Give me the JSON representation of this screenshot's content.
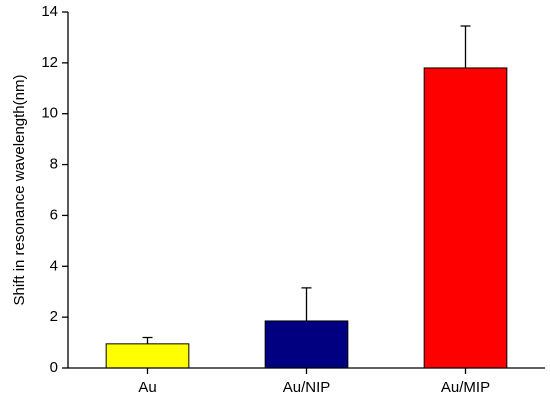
{
  "chart_data": {
    "type": "bar",
    "y_label": "Shift in resonance wavelength(nm)",
    "categories": [
      "Au",
      "Au/NIP",
      "Au/MIP"
    ],
    "values": [
      0.95,
      1.85,
      11.8
    ],
    "errors": [
      0.25,
      1.3,
      1.65
    ],
    "colors": [
      "#ffff00",
      "#000080",
      "#ff0000"
    ],
    "ylim": [
      0,
      14
    ],
    "yticks": [
      0,
      2,
      4,
      6,
      8,
      10,
      12,
      14
    ],
    "grid": false
  }
}
